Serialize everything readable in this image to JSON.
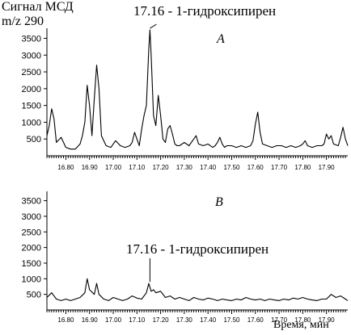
{
  "figure": {
    "ylabel_line1": "Сигнал МСД",
    "ylabel_line2": "m/z 290",
    "xlabel": "Время, мин"
  },
  "chart_data": [
    {
      "type": "line",
      "panel_label": "А",
      "annotation": "17.16 - 1-гидроксипирен",
      "annotation_x": 17.155,
      "xlim": [
        16.72,
        17.99
      ],
      "ylim": [
        0,
        3800
      ],
      "yticks": [
        500,
        1000,
        1500,
        2000,
        2500,
        3000,
        3500
      ],
      "xticks": [
        "16.80",
        "16.90",
        "17.00",
        "17.10",
        "17.20",
        "17.30",
        "17.40",
        "17.50",
        "17.60",
        "17.70",
        "17.80",
        "17.90"
      ],
      "x": [
        16.72,
        16.73,
        16.74,
        16.75,
        16.76,
        16.78,
        16.8,
        16.82,
        16.84,
        16.86,
        16.87,
        16.88,
        16.89,
        16.9,
        16.91,
        16.92,
        16.93,
        16.94,
        16.95,
        16.97,
        16.99,
        17.01,
        17.03,
        17.05,
        17.07,
        17.08,
        17.09,
        17.1,
        17.11,
        17.12,
        17.13,
        17.14,
        17.15,
        17.155,
        17.16,
        17.17,
        17.18,
        17.19,
        17.2,
        17.21,
        17.22,
        17.23,
        17.24,
        17.25,
        17.26,
        17.27,
        17.28,
        17.3,
        17.32,
        17.34,
        17.35,
        17.36,
        17.38,
        17.4,
        17.42,
        17.43,
        17.44,
        17.45,
        17.46,
        17.47,
        17.48,
        17.5,
        17.52,
        17.54,
        17.56,
        17.58,
        17.59,
        17.6,
        17.61,
        17.62,
        17.63,
        17.65,
        17.67,
        17.69,
        17.71,
        17.73,
        17.75,
        17.77,
        17.79,
        17.8,
        17.81,
        17.82,
        17.84,
        17.86,
        17.88,
        17.89,
        17.9,
        17.91,
        17.92,
        17.93,
        17.95,
        17.96,
        17.97,
        17.98,
        17.99
      ],
      "y": [
        600,
        900,
        1400,
        1100,
        400,
        550,
        250,
        200,
        200,
        350,
        600,
        1000,
        2100,
        1500,
        600,
        1700,
        2700,
        2000,
        600,
        300,
        250,
        450,
        300,
        250,
        300,
        400,
        700,
        500,
        300,
        800,
        1200,
        1500,
        3200,
        3750,
        3000,
        1200,
        900,
        1800,
        1200,
        500,
        400,
        800,
        900,
        650,
        350,
        300,
        300,
        400,
        300,
        500,
        600,
        350,
        300,
        350,
        250,
        300,
        400,
        550,
        350,
        250,
        300,
        300,
        250,
        300,
        250,
        300,
        450,
        950,
        1300,
        700,
        350,
        300,
        250,
        300,
        300,
        250,
        300,
        250,
        300,
        350,
        450,
        300,
        250,
        300,
        300,
        350,
        650,
        500,
        600,
        350,
        300,
        550,
        850,
        500,
        300
      ]
    },
    {
      "type": "line",
      "panel_label": "B",
      "annotation": "17.16 - 1-гидроксипирен",
      "annotation_x": 17.155,
      "xlim": [
        16.72,
        17.99
      ],
      "ylim": [
        0,
        3800
      ],
      "yticks": [
        500,
        1000,
        1500,
        2000,
        2500,
        3000,
        3500
      ],
      "xticks": [
        "16.80",
        "16.90",
        "17.00",
        "17.10",
        "17.20",
        "17.30",
        "17.40",
        "17.50",
        "17.60",
        "17.70",
        "17.80",
        "17.90"
      ],
      "x": [
        16.72,
        16.74,
        16.76,
        16.78,
        16.8,
        16.82,
        16.84,
        16.86,
        16.88,
        16.89,
        16.9,
        16.92,
        16.93,
        16.94,
        16.96,
        16.98,
        17.0,
        17.02,
        17.04,
        17.06,
        17.08,
        17.1,
        17.12,
        17.14,
        17.15,
        17.16,
        17.17,
        17.18,
        17.2,
        17.22,
        17.24,
        17.26,
        17.28,
        17.3,
        17.32,
        17.34,
        17.36,
        17.38,
        17.4,
        17.42,
        17.44,
        17.46,
        17.48,
        17.5,
        17.52,
        17.54,
        17.56,
        17.58,
        17.6,
        17.62,
        17.64,
        17.66,
        17.68,
        17.7,
        17.72,
        17.74,
        17.76,
        17.78,
        17.8,
        17.82,
        17.84,
        17.86,
        17.88,
        17.9,
        17.92,
        17.94,
        17.96,
        17.98,
        17.99
      ],
      "y": [
        400,
        550,
        350,
        300,
        350,
        300,
        350,
        400,
        550,
        1000,
        650,
        500,
        850,
        500,
        350,
        300,
        400,
        350,
        300,
        350,
        450,
        380,
        350,
        550,
        850,
        600,
        650,
        550,
        600,
        400,
        450,
        350,
        400,
        350,
        300,
        400,
        350,
        320,
        380,
        350,
        300,
        350,
        320,
        300,
        350,
        320,
        400,
        350,
        320,
        350,
        300,
        350,
        320,
        300,
        350,
        320,
        380,
        350,
        400,
        350,
        320,
        300,
        350,
        350,
        500,
        400,
        450,
        350,
        300
      ]
    }
  ]
}
